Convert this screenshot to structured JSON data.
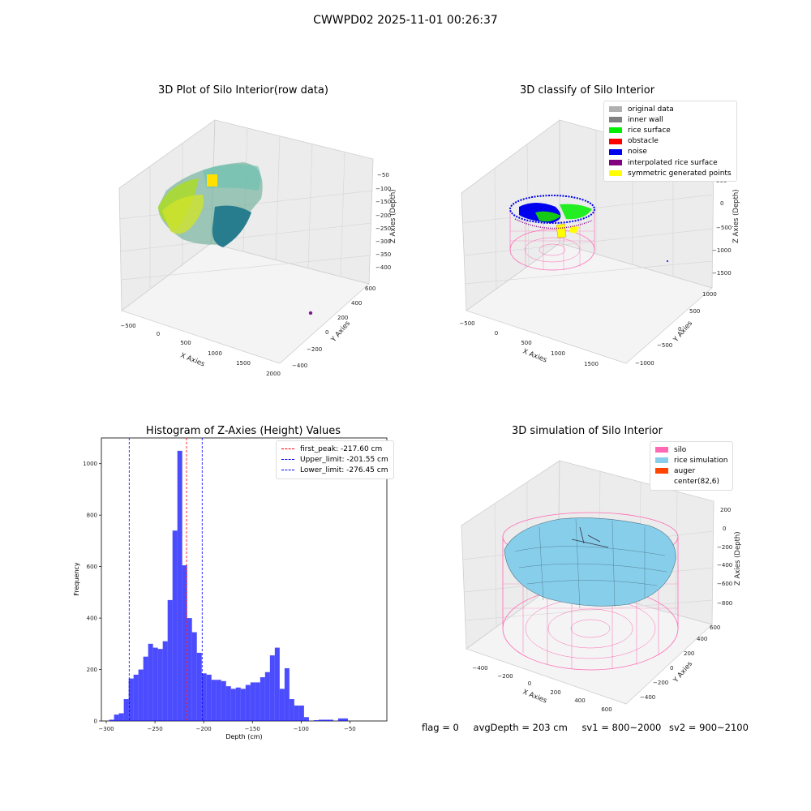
{
  "suptitle": "CWWPD02 2025-11-01 00:26:37",
  "panels": {
    "raw": {
      "title": "3D Plot of Silo Interior(row data)",
      "xlabel": "X Axies",
      "ylabel": "Y Axies",
      "zlabel": "Z Axies (Depth)",
      "xticks": [
        "−500",
        "0",
        "500",
        "1000",
        "1500",
        "2000"
      ],
      "yticks": [
        "−400",
        "−200",
        "0",
        "200",
        "400",
        "600"
      ],
      "zticks": [
        "−50",
        "−100",
        "−150",
        "−200",
        "−250",
        "−300",
        "−350",
        "−400"
      ]
    },
    "classify": {
      "title": "3D classify of Silo Interior",
      "xlabel": "X Axies",
      "ylabel": "Y Axies",
      "zlabel": "Z Axies (Depth)",
      "xticks": [
        "−500",
        "0",
        "500",
        "1000",
        "1500"
      ],
      "yticks": [
        "−1000",
        "−500",
        "0",
        "500",
        "1000"
      ],
      "zticks": [
        "500",
        "0",
        "−500",
        "−1000",
        "−1500"
      ],
      "legend": [
        {
          "label": "original data",
          "color": "#b0b0b0"
        },
        {
          "label": "inner wall",
          "color": "#808080"
        },
        {
          "label": "rice surface",
          "color": "#00ee00"
        },
        {
          "label": "obstacle",
          "color": "#ff0000"
        },
        {
          "label": "noise",
          "color": "#0000ee"
        },
        {
          "label": "interpolated rice surface",
          "color": "#800080"
        },
        {
          "label": "symmetric generated points",
          "color": "#ffff00"
        }
      ]
    },
    "simulation": {
      "title": "3D simulation of Silo Interior",
      "xlabel": "X Axies",
      "ylabel": "Y Axies",
      "zlabel": "Z Axies (Depth)",
      "xticks": [
        "−400",
        "−200",
        "0",
        "200",
        "400",
        "600"
      ],
      "yticks": [
        "−400",
        "−200",
        "0",
        "200",
        "400",
        "600"
      ],
      "zticks": [
        "200",
        "0",
        "−200",
        "−400",
        "−600",
        "−800"
      ],
      "legend": [
        {
          "label": "silo",
          "color": "#ff69b4"
        },
        {
          "label": "rice simulation",
          "color": "#87ceeb"
        },
        {
          "label": "auger",
          "color": "#ff4500"
        },
        {
          "label": "center(82,6)",
          "color": ""
        }
      ]
    }
  },
  "footer": {
    "flag": "flag = 0",
    "avg": "avgDepth = 203 cm",
    "sv1": "sv1 = 800~2000",
    "sv2": "sv2 = 900~2100"
  },
  "chart_data": {
    "type": "bar",
    "title": "Histogram of Z-Axies (Height) Values",
    "xlabel": "Depth (cm)",
    "ylabel": "Frequency",
    "xlim": [
      -305,
      -12
    ],
    "ylim": [
      0,
      1100
    ],
    "xticks": [
      -300,
      -250,
      -200,
      -150,
      -100,
      -50
    ],
    "yticks": [
      0,
      200,
      400,
      600,
      800,
      1000
    ],
    "bin_start": -297,
    "bin_width": 5,
    "values": [
      5,
      25,
      30,
      85,
      165,
      180,
      200,
      250,
      300,
      285,
      280,
      310,
      470,
      740,
      1050,
      605,
      400,
      345,
      265,
      185,
      180,
      160,
      160,
      155,
      135,
      125,
      130,
      125,
      140,
      150,
      150,
      170,
      190,
      255,
      285,
      125,
      205,
      85,
      60,
      60,
      15,
      0,
      3,
      5,
      5,
      5,
      0,
      10,
      10
    ],
    "bar_color": "#0000ff",
    "lines": [
      {
        "label": "first_peak: -217.60 cm",
        "x": -217.6,
        "color": "#ff0000"
      },
      {
        "label": "Upper_limit: -201.55 cm",
        "x": -201.55,
        "color": "#0000ff"
      },
      {
        "label": "Lower_limit: -276.45 cm",
        "x": -276.45,
        "color": "#0000ff"
      }
    ],
    "legend_position": "top-right"
  }
}
